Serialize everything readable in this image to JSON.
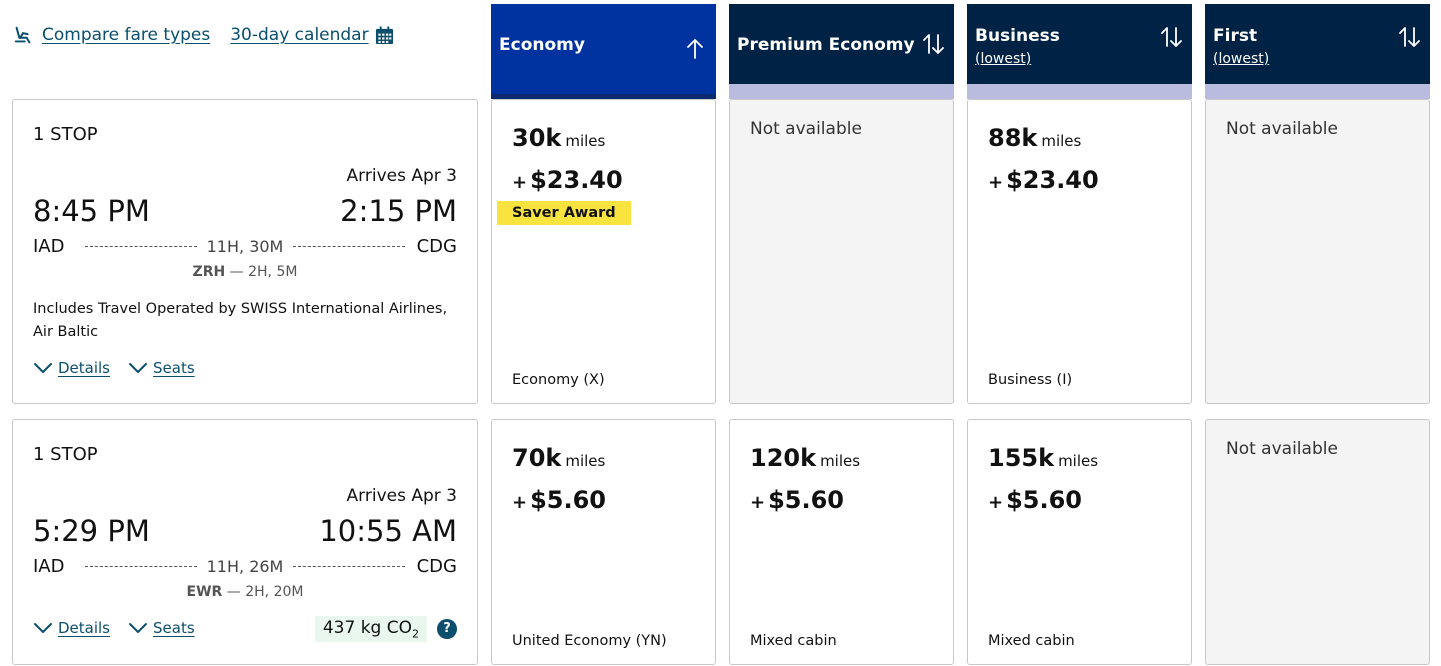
{
  "top": {
    "compare_label": "Compare fare types",
    "calendar_label": "30-day calendar",
    "compare_icon": "seat-icon",
    "calendar_icon": "calendar-icon"
  },
  "columns": [
    {
      "name": "Economy",
      "sub": "",
      "sort": "sort-ascending-icon",
      "active": true
    },
    {
      "name": "Premium Economy",
      "sub": "",
      "sort": "sort-icon",
      "active": false
    },
    {
      "name": "Business",
      "sub": "(lowest)",
      "sort": "sort-icon",
      "active": false
    },
    {
      "name": "First",
      "sub": "(lowest)",
      "sort": "sort-icon",
      "active": false
    }
  ],
  "colors": {
    "active_header": "#0033a0",
    "header": "#002244",
    "header_strip": "#b9bcdf",
    "link": "#0b4f6c",
    "saver_badge": "#f8e33f",
    "co2_bg": "#e9f7ee",
    "na_bg": "#f4f4f4"
  },
  "flights": [
    {
      "stops": "1 STOP",
      "arrives": "Arrives Apr 3",
      "depart_time": "8:45 PM",
      "arrive_time": "2:15 PM",
      "origin": "IAD",
      "destination": "CDG",
      "duration": "11H, 30M",
      "connection_airport": "ZRH",
      "connection_time": "— 2H, 5M",
      "operated_by": "Includes Travel Operated by SWISS International Airlines, Air Baltic",
      "details_label": "Details",
      "seats_label": "Seats",
      "co2": "",
      "fares": [
        {
          "available": true,
          "miles": "30k",
          "miles_unit": "miles",
          "tax": "$23.40",
          "badge": "Saver Award",
          "cabin": "Economy (X)"
        },
        {
          "available": false,
          "na_text": "Not available"
        },
        {
          "available": true,
          "miles": "88k",
          "miles_unit": "miles",
          "tax": "$23.40",
          "badge": "",
          "cabin": "Business (I)"
        },
        {
          "available": false,
          "na_text": "Not available"
        }
      ]
    },
    {
      "stops": "1 STOP",
      "arrives": "Arrives Apr 3",
      "depart_time": "5:29 PM",
      "arrive_time": "10:55 AM",
      "origin": "IAD",
      "destination": "CDG",
      "duration": "11H, 26M",
      "connection_airport": "EWR",
      "connection_time": "— 2H, 20M",
      "operated_by": "",
      "details_label": "Details",
      "seats_label": "Seats",
      "co2": "437 kg CO",
      "co2_sub": "2",
      "help_label": "?",
      "fares": [
        {
          "available": true,
          "miles": "70k",
          "miles_unit": "miles",
          "tax": "$5.60",
          "badge": "",
          "cabin": "United Economy (YN)"
        },
        {
          "available": true,
          "miles": "120k",
          "miles_unit": "miles",
          "tax": "$5.60",
          "badge": "",
          "cabin": "Mixed cabin"
        },
        {
          "available": true,
          "miles": "155k",
          "miles_unit": "miles",
          "tax": "$5.60",
          "badge": "",
          "cabin": "Mixed cabin"
        },
        {
          "available": false,
          "na_text": "Not available"
        }
      ]
    }
  ]
}
